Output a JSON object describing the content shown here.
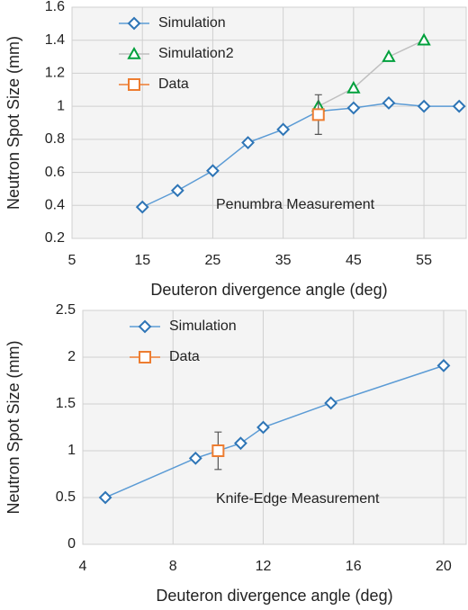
{
  "chart_data": [
    {
      "type": "line",
      "annotation": "Penumbra Measurement",
      "xlabel": "Deuteron divergence angle (deg)",
      "ylabel": "Neutron Spot Size (mm)",
      "xlim": [
        5,
        61
      ],
      "xticks": [
        5,
        15,
        25,
        35,
        45,
        55
      ],
      "ylim": [
        0.2,
        1.6
      ],
      "yticks": [
        0.2,
        0.4,
        0.6,
        0.8,
        1,
        1.2,
        1.4,
        1.6
      ],
      "grid": true,
      "legend": "upper left",
      "series": [
        {
          "name": "Simulation",
          "color": "#2e75b6",
          "line_color": "#5b9bd5",
          "marker": "diamond",
          "x": [
            15,
            20,
            25,
            30,
            35,
            40,
            45,
            50,
            55,
            60
          ],
          "values": [
            0.39,
            0.49,
            0.61,
            0.78,
            0.86,
            0.97,
            0.99,
            1.02,
            1.0,
            1.0
          ]
        },
        {
          "name": "Simulation2",
          "color": "#00a03c",
          "line_color": "#bfbfbf",
          "marker": "triangle",
          "x": [
            40,
            45,
            50,
            55
          ],
          "values": [
            1.0,
            1.11,
            1.3,
            1.4
          ]
        },
        {
          "name": "Data",
          "color": "#ed7d31",
          "marker": "square",
          "x": [
            40
          ],
          "values": [
            0.95
          ],
          "errors": [
            0.12
          ]
        }
      ]
    },
    {
      "type": "line",
      "annotation": "Knife-Edge Measurement",
      "xlabel": "Deuteron divergence angle (deg)",
      "ylabel": "Neutron Spot Size (mm)",
      "xlim": [
        4,
        21
      ],
      "xticks": [
        4,
        8,
        12,
        16,
        20
      ],
      "ylim": [
        0,
        2.5
      ],
      "yticks": [
        0,
        0.5,
        1,
        1.5,
        2,
        2.5
      ],
      "grid": true,
      "legend": "upper left",
      "series": [
        {
          "name": "Simulation",
          "color": "#2e75b6",
          "line_color": "#5b9bd5",
          "marker": "diamond",
          "x": [
            5,
            9,
            11,
            12,
            15,
            20
          ],
          "values": [
            0.5,
            0.92,
            1.08,
            1.25,
            1.51,
            1.91
          ]
        },
        {
          "name": "Data",
          "color": "#ed7d31",
          "marker": "square",
          "x": [
            10
          ],
          "values": [
            1.0
          ],
          "errors": [
            0.2
          ]
        }
      ]
    }
  ]
}
